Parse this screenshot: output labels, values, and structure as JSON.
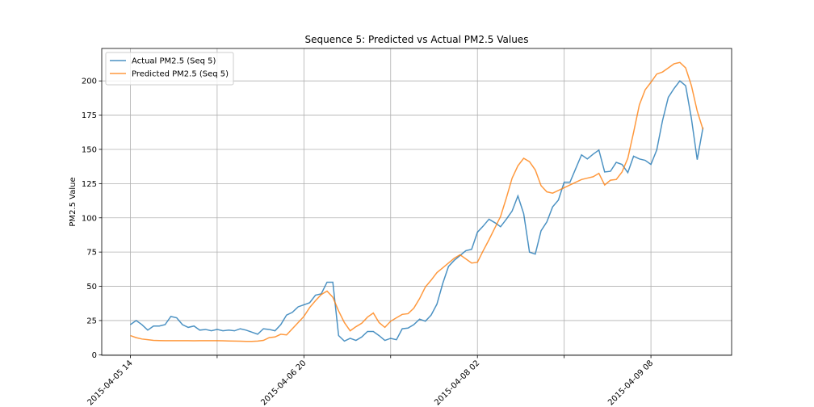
{
  "chart_data": {
    "type": "line",
    "title": "Sequence 5: Predicted vs Actual PM2.5 Values",
    "ylabel": "PM2.5 Value",
    "x": [
      "2015-04-05 14",
      "2015-04-05 15",
      "2015-04-05 16",
      "2015-04-05 17",
      "2015-04-05 18",
      "2015-04-05 19",
      "2015-04-05 20",
      "2015-04-05 21",
      "2015-04-05 22",
      "2015-04-05 23",
      "2015-04-06 00",
      "2015-04-06 01",
      "2015-04-06 02",
      "2015-04-06 03",
      "2015-04-06 04",
      "2015-04-06 05",
      "2015-04-06 06",
      "2015-04-06 07",
      "2015-04-06 08",
      "2015-04-06 09",
      "2015-04-06 10",
      "2015-04-06 11",
      "2015-04-06 12",
      "2015-04-06 13",
      "2015-04-06 14",
      "2015-04-06 15",
      "2015-04-06 16",
      "2015-04-06 17",
      "2015-04-06 18",
      "2015-04-06 19",
      "2015-04-06 20",
      "2015-04-06 21",
      "2015-04-06 22",
      "2015-04-06 23",
      "2015-04-07 00",
      "2015-04-07 01",
      "2015-04-07 02",
      "2015-04-07 03",
      "2015-04-07 04",
      "2015-04-07 05",
      "2015-04-07 06",
      "2015-04-07 07",
      "2015-04-07 08",
      "2015-04-07 09",
      "2015-04-07 10",
      "2015-04-07 11",
      "2015-04-07 12",
      "2015-04-07 13",
      "2015-04-07 14",
      "2015-04-07 15",
      "2015-04-07 16",
      "2015-04-07 17",
      "2015-04-07 18",
      "2015-04-07 19",
      "2015-04-07 20",
      "2015-04-07 21",
      "2015-04-07 22",
      "2015-04-07 23",
      "2015-04-08 00",
      "2015-04-08 01",
      "2015-04-08 02",
      "2015-04-08 03",
      "2015-04-08 04",
      "2015-04-08 05",
      "2015-04-08 06",
      "2015-04-08 07",
      "2015-04-08 08",
      "2015-04-08 09",
      "2015-04-08 10",
      "2015-04-08 11",
      "2015-04-08 12",
      "2015-04-08 13",
      "2015-04-08 14",
      "2015-04-08 15",
      "2015-04-08 16",
      "2015-04-08 17",
      "2015-04-08 18",
      "2015-04-08 19",
      "2015-04-08 20",
      "2015-04-08 21",
      "2015-04-08 22",
      "2015-04-08 23",
      "2015-04-09 00",
      "2015-04-09 01",
      "2015-04-09 02",
      "2015-04-09 03",
      "2015-04-09 04",
      "2015-04-09 05",
      "2015-04-09 06",
      "2015-04-09 07",
      "2015-04-09 08",
      "2015-04-09 09",
      "2015-04-09 10",
      "2015-04-09 11",
      "2015-04-09 12",
      "2015-04-09 13",
      "2015-04-09 14",
      "2015-04-09 15",
      "2015-04-09 16",
      "2015-04-09 17"
    ],
    "series": [
      {
        "name": "Actual PM2.5 (Seq 5)",
        "color": "#1f77b4",
        "values": [
          22,
          25,
          22,
          18,
          21,
          21,
          22,
          28,
          27,
          22,
          20,
          21,
          18,
          18.5,
          17.5,
          18.5,
          17.5,
          18,
          17.5,
          19,
          18,
          16.5,
          15,
          19,
          18.5,
          17.5,
          22,
          29,
          31,
          35,
          36.5,
          38,
          43.5,
          44.5,
          53,
          53,
          14,
          10,
          12,
          10.5,
          13,
          17,
          17,
          14,
          10.5,
          12,
          11,
          19,
          19.5,
          22,
          26,
          24.5,
          29,
          37,
          52,
          64.5,
          69,
          72.5,
          76,
          77,
          89.5,
          94,
          99,
          96.5,
          93.5,
          99,
          105,
          116,
          103,
          75,
          73.5,
          90.5,
          97,
          108,
          113,
          126,
          126,
          136,
          146,
          143,
          146.5,
          149.5,
          133.5,
          134,
          140.5,
          139,
          133,
          145,
          143,
          142,
          139,
          149.5,
          171,
          188,
          194.5,
          200,
          196.5,
          172.5,
          142.5,
          166
        ]
      },
      {
        "name": "Predicted PM2.5 (Seq 5)",
        "color": "#ff7f0e",
        "values": [
          14,
          12.5,
          11.5,
          11,
          10.5,
          10.4,
          10.3,
          10.3,
          10.3,
          10.3,
          10.3,
          10.2,
          10.3,
          10.3,
          10.3,
          10.3,
          10.2,
          10.1,
          10,
          9.9,
          9.8,
          9.8,
          10,
          10.5,
          12.5,
          13,
          15,
          14.5,
          19,
          23.5,
          28,
          34.5,
          39.5,
          44,
          46.5,
          42,
          32,
          23.5,
          17.5,
          20.5,
          23,
          27.5,
          30.5,
          23.5,
          20,
          24.5,
          27,
          29.5,
          30,
          34,
          41,
          49.5,
          54.5,
          60,
          63.5,
          67,
          70.5,
          73,
          70,
          67,
          67.5,
          76,
          84,
          92.5,
          101,
          114.5,
          129,
          138,
          143.5,
          141,
          135,
          123.5,
          119,
          118,
          120,
          122,
          124,
          126,
          128,
          129,
          130,
          132.5,
          124,
          127.5,
          128,
          133.5,
          143.5,
          162.5,
          182.5,
          193.5,
          199,
          205,
          206.5,
          209.5,
          212.5,
          213.5,
          209.5,
          196.5,
          178,
          164.5
        ]
      }
    ],
    "xlim": [
      "2015-04-05 09:03",
      "2015-04-09 21:57"
    ],
    "xticks": [
      {
        "value": "2015-04-05 14",
        "label": "2015-04-05 14"
      },
      {
        "value": "2015-04-06 05",
        "label": null
      },
      {
        "value": "2015-04-06 20",
        "label": "2015-04-06 20"
      },
      {
        "value": "2015-04-07 11",
        "label": null
      },
      {
        "value": "2015-04-08 02",
        "label": "2015-04-08 02"
      },
      {
        "value": "2015-04-08 17",
        "label": null
      },
      {
        "value": "2015-04-09 08",
        "label": "2015-04-09 08"
      }
    ],
    "ylim": [
      -0.4,
      223.7
    ],
    "yticks": [
      0,
      25,
      50,
      75,
      100,
      125,
      150,
      175,
      200
    ],
    "grid": true,
    "legend": "upper left"
  }
}
